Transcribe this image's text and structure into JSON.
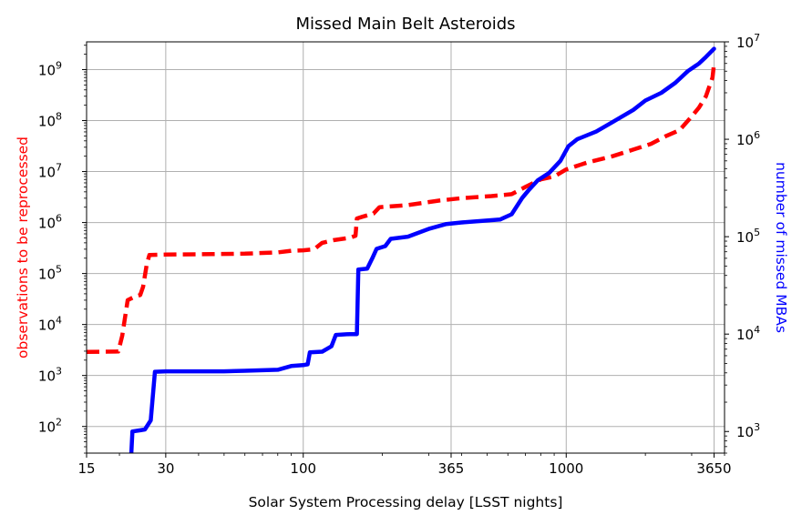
{
  "chart_data": {
    "type": "line",
    "title": "Missed Main Belt Asteroids",
    "xlabel": "Solar System Processing delay [LSST nights]",
    "ylabel_left": "observations to be reprocessed",
    "ylabel_right": "number of missed MBAs",
    "x_scale": "log",
    "xlim": [
      15,
      4000
    ],
    "x_ticks": [
      15,
      30,
      100,
      365,
      1000,
      3650
    ],
    "x_tick_labels": [
      "15",
      "30",
      "100",
      "365",
      "1000",
      "3650"
    ],
    "y_left_scale": "log",
    "y_left_lim": [
      30,
      3500000000.0
    ],
    "y_left_tick_labels": [
      {
        "base": "10",
        "exp": "2",
        "value": 100
      },
      {
        "base": "10",
        "exp": "3",
        "value": 1000
      },
      {
        "base": "10",
        "exp": "4",
        "value": 10000
      },
      {
        "base": "10",
        "exp": "5",
        "value": 100000
      },
      {
        "base": "10",
        "exp": "6",
        "value": 1000000
      },
      {
        "base": "10",
        "exp": "7",
        "value": 10000000
      },
      {
        "base": "10",
        "exp": "8",
        "value": 100000000
      },
      {
        "base": "10",
        "exp": "9",
        "value": 1000000000
      }
    ],
    "y_right_scale": "log",
    "y_right_lim": [
      600,
      10000000
    ],
    "y_right_tick_labels": [
      {
        "base": "10",
        "exp": "3",
        "value": 1000
      },
      {
        "base": "10",
        "exp": "4",
        "value": 10000
      },
      {
        "base": "10",
        "exp": "5",
        "value": 100000
      },
      {
        "base": "10",
        "exp": "6",
        "value": 1000000
      },
      {
        "base": "10",
        "exp": "7",
        "value": 10000000
      }
    ],
    "grid": true,
    "series": [
      {
        "axis": "left",
        "color": "#ff0000",
        "style": "dashed",
        "points": [
          [
            15,
            2900
          ],
          [
            19.8,
            2950
          ],
          [
            20.5,
            6000
          ],
          [
            21.5,
            30000
          ],
          [
            22.8,
            35000
          ],
          [
            24,
            38000
          ],
          [
            24.6,
            55000
          ],
          [
            25.4,
            150000
          ],
          [
            26,
            230000
          ],
          [
            30,
            235000
          ],
          [
            45,
            240000
          ],
          [
            60,
            245000
          ],
          [
            80,
            260000
          ],
          [
            90,
            280000
          ],
          [
            100,
            285000
          ],
          [
            110,
            300000
          ],
          [
            118,
            400000
          ],
          [
            130,
            450000
          ],
          [
            150,
            500000
          ],
          [
            158,
            550000
          ],
          [
            160,
            1200000
          ],
          [
            168,
            1300000
          ],
          [
            185,
            1500000
          ],
          [
            195,
            2000000
          ],
          [
            250,
            2200000
          ],
          [
            330,
            2700000
          ],
          [
            400,
            3000000
          ],
          [
            520,
            3300000
          ],
          [
            620,
            3600000
          ],
          [
            700,
            5000000
          ],
          [
            800,
            7000000
          ],
          [
            900,
            8000000
          ],
          [
            1000,
            11000000
          ],
          [
            1200,
            15000000
          ],
          [
            1500,
            20000000
          ],
          [
            1800,
            27000000
          ],
          [
            2100,
            35000000
          ],
          [
            2400,
            50000000
          ],
          [
            2700,
            65000000
          ],
          [
            3000,
            120000000
          ],
          [
            3200,
            180000000
          ],
          [
            3400,
            300000000
          ],
          [
            3600,
            700000000
          ],
          [
            3650,
            1300000000
          ]
        ]
      },
      {
        "axis": "right",
        "color": "#0000ff",
        "style": "solid",
        "points": [
          [
            22.2,
            600
          ],
          [
            22.4,
            1000
          ],
          [
            24,
            1030
          ],
          [
            25,
            1050
          ],
          [
            26.3,
            1300
          ],
          [
            27.3,
            4100
          ],
          [
            30,
            4150
          ],
          [
            50,
            4150
          ],
          [
            60,
            4200
          ],
          [
            80,
            4300
          ],
          [
            90,
            4700
          ],
          [
            100,
            4800
          ],
          [
            104,
            4900
          ],
          [
            106,
            6500
          ],
          [
            118,
            6600
          ],
          [
            128,
            7500
          ],
          [
            133,
            9800
          ],
          [
            150,
            10000
          ],
          [
            160,
            10000
          ],
          [
            162,
            46000
          ],
          [
            175,
            47000
          ],
          [
            183,
            60000
          ],
          [
            190,
            75000
          ],
          [
            205,
            80000
          ],
          [
            215,
            95000
          ],
          [
            250,
            100000
          ],
          [
            300,
            120000
          ],
          [
            350,
            135000
          ],
          [
            400,
            140000
          ],
          [
            480,
            145000
          ],
          [
            560,
            150000
          ],
          [
            620,
            170000
          ],
          [
            680,
            250000
          ],
          [
            720,
            300000
          ],
          [
            780,
            380000
          ],
          [
            860,
            450000
          ],
          [
            950,
            600000
          ],
          [
            1020,
            850000
          ],
          [
            1100,
            1000000
          ],
          [
            1300,
            1200000
          ],
          [
            1500,
            1500000
          ],
          [
            1800,
            2000000
          ],
          [
            2000,
            2500000
          ],
          [
            2300,
            3000000
          ],
          [
            2600,
            3800000
          ],
          [
            2900,
            5000000
          ],
          [
            3200,
            6000000
          ],
          [
            3400,
            7000000
          ],
          [
            3650,
            8500000
          ]
        ]
      }
    ]
  }
}
